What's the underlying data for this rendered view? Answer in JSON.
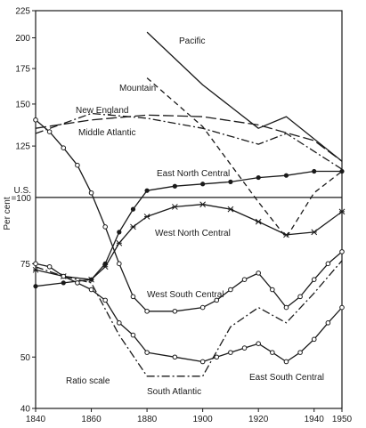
{
  "chart_data": {
    "type": "line",
    "ylabel": "Per cent",
    "yscale": "log",
    "note": "Ratio scale",
    "reference_line": {
      "value": 100,
      "label_line1": "U.S.",
      "label_line2": "=100"
    },
    "xlim": [
      1840,
      1950
    ],
    "ylim": [
      40,
      225
    ],
    "x_ticks": [
      "1840",
      "1860",
      "1880",
      "1900",
      "1920",
      "1940",
      "1950"
    ],
    "x_tick_values": [
      1840,
      1860,
      1880,
      1900,
      1920,
      1940,
      1950
    ],
    "y_ticks": [
      "225",
      "200",
      "175",
      "150",
      "125",
      "75",
      "50",
      "40"
    ],
    "y_tick_values": [
      225,
      200,
      175,
      150,
      125,
      75,
      50,
      40
    ],
    "colors": {
      "ink": "#1a1a1a",
      "background": "#ffffff"
    },
    "series": [
      {
        "name": "Pacific",
        "style": "solid",
        "marker": "none",
        "points": [
          [
            1880,
            205
          ],
          [
            1900,
            163
          ],
          [
            1920,
            135
          ],
          [
            1930,
            142
          ],
          [
            1950,
            117
          ]
        ]
      },
      {
        "name": "Mountain",
        "style": "dashed",
        "marker": "none",
        "points": [
          [
            1880,
            168
          ],
          [
            1900,
            136
          ],
          [
            1920,
            98
          ],
          [
            1930,
            84
          ],
          [
            1940,
            102
          ],
          [
            1950,
            112
          ]
        ]
      },
      {
        "name": "New England",
        "style": "dashdot",
        "marker": "none",
        "points": [
          [
            1840,
            132
          ],
          [
            1860,
            144
          ],
          [
            1880,
            141
          ],
          [
            1900,
            135
          ],
          [
            1920,
            126
          ],
          [
            1930,
            132
          ],
          [
            1950,
            113
          ]
        ]
      },
      {
        "name": "Middle Atlantic",
        "style": "longdash",
        "marker": "none",
        "points": [
          [
            1840,
            135
          ],
          [
            1860,
            140
          ],
          [
            1880,
            143
          ],
          [
            1900,
            142
          ],
          [
            1920,
            137
          ],
          [
            1940,
            128
          ],
          [
            1950,
            117
          ]
        ]
      },
      {
        "name": "East North Central",
        "style": "solid",
        "marker": "dot",
        "points": [
          [
            1840,
            68
          ],
          [
            1850,
            69
          ],
          [
            1860,
            70
          ],
          [
            1865,
            75
          ],
          [
            1870,
            86
          ],
          [
            1875,
            95
          ],
          [
            1880,
            103
          ],
          [
            1890,
            105
          ],
          [
            1900,
            106
          ],
          [
            1910,
            107
          ],
          [
            1920,
            109
          ],
          [
            1930,
            110
          ],
          [
            1940,
            112
          ],
          [
            1950,
            112
          ]
        ]
      },
      {
        "name": "West North Central",
        "style": "solid",
        "marker": "star",
        "points": [
          [
            1840,
            73
          ],
          [
            1850,
            71
          ],
          [
            1860,
            70
          ],
          [
            1865,
            74
          ],
          [
            1870,
            82
          ],
          [
            1875,
            88
          ],
          [
            1880,
            92
          ],
          [
            1890,
            96
          ],
          [
            1900,
            97
          ],
          [
            1910,
            95
          ],
          [
            1920,
            90
          ],
          [
            1930,
            85
          ],
          [
            1940,
            86
          ],
          [
            1950,
            94
          ]
        ]
      },
      {
        "name": "West South Central",
        "style": "solid",
        "marker": "circle",
        "points": [
          [
            1840,
            140
          ],
          [
            1845,
            133
          ],
          [
            1850,
            124
          ],
          [
            1855,
            115
          ],
          [
            1860,
            102
          ],
          [
            1865,
            88
          ],
          [
            1870,
            75
          ],
          [
            1875,
            65
          ],
          [
            1880,
            61
          ],
          [
            1890,
            61
          ],
          [
            1900,
            62
          ],
          [
            1905,
            64
          ],
          [
            1910,
            67
          ],
          [
            1915,
            70
          ],
          [
            1920,
            72
          ],
          [
            1925,
            67
          ],
          [
            1930,
            62
          ],
          [
            1935,
            65
          ],
          [
            1940,
            70
          ],
          [
            1945,
            75
          ],
          [
            1950,
            79
          ]
        ]
      },
      {
        "name": "South Atlantic",
        "style": "dashdot",
        "marker": "none",
        "points": [
          [
            1840,
            74
          ],
          [
            1850,
            71
          ],
          [
            1860,
            69
          ],
          [
            1870,
            55
          ],
          [
            1880,
            46
          ],
          [
            1890,
            46
          ],
          [
            1900,
            46
          ],
          [
            1910,
            57
          ],
          [
            1920,
            62
          ],
          [
            1930,
            58
          ],
          [
            1940,
            66
          ],
          [
            1950,
            76
          ]
        ]
      },
      {
        "name": "East South Central",
        "style": "solid",
        "marker": "circle",
        "points": [
          [
            1840,
            75
          ],
          [
            1845,
            74
          ],
          [
            1850,
            71
          ],
          [
            1855,
            69
          ],
          [
            1860,
            67
          ],
          [
            1865,
            64
          ],
          [
            1870,
            58
          ],
          [
            1875,
            55
          ],
          [
            1880,
            51
          ],
          [
            1890,
            50
          ],
          [
            1900,
            49
          ],
          [
            1905,
            50
          ],
          [
            1910,
            51
          ],
          [
            1915,
            52
          ],
          [
            1920,
            53
          ],
          [
            1925,
            51
          ],
          [
            1930,
            49
          ],
          [
            1935,
            51
          ],
          [
            1940,
            54
          ],
          [
            1945,
            58
          ],
          [
            1950,
            62
          ]
        ]
      }
    ]
  }
}
